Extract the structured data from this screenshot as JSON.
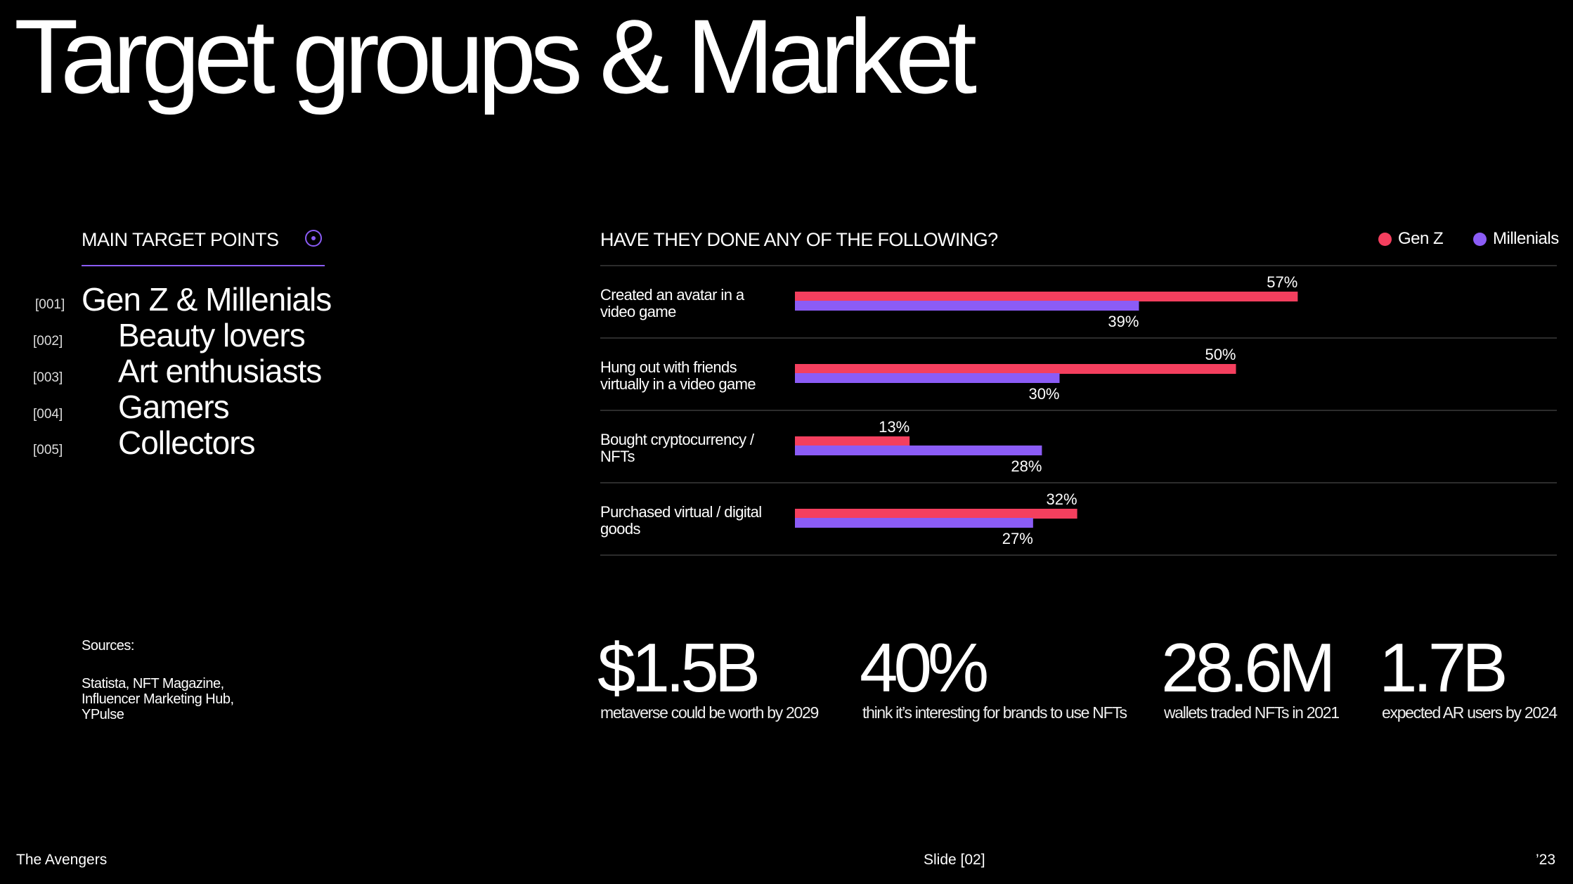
{
  "slide": {
    "title": "Target groups & Market",
    "footer_left": "The Avengers",
    "footer_center": "Slide [02]",
    "footer_right": "’23"
  },
  "target": {
    "heading": "MAIN TARGET POINTS",
    "icon": "target-dot-icon",
    "items": [
      {
        "num": "[001]",
        "label": "Gen Z & Millenials"
      },
      {
        "num": "[002]",
        "label": "Beauty lovers"
      },
      {
        "num": "[003]",
        "label": "Art enthusiasts"
      },
      {
        "num": "[004]",
        "label": "Gamers"
      },
      {
        "num": "[005]",
        "label": "Collectors"
      }
    ]
  },
  "sources": {
    "label": "Sources:",
    "lines": [
      "Statista, NFT Magazine,",
      "Influencer Marketing Hub,",
      "YPulse"
    ]
  },
  "colors": {
    "background": "#000000",
    "gen_z": "#f43f5e",
    "millenials": "#8b5cf6",
    "rule": "#3a3a3a"
  },
  "chart_data": {
    "type": "bar",
    "orientation": "horizontal",
    "title": "HAVE THEY DONE ANY OF THE FOLLOWING?",
    "legend_position": "top-right",
    "categories": [
      [
        "Created an avatar in a",
        "video game"
      ],
      [
        "Hung out with friends",
        "virtually in a video game"
      ],
      [
        "Bought cryptocurrency /",
        "NFTs"
      ],
      [
        "Purchased virtual / digital",
        "goods"
      ]
    ],
    "series": [
      {
        "name": "Gen Z",
        "color": "#f43f5e",
        "values": [
          57,
          50,
          13,
          32
        ],
        "labels": [
          "57%",
          "50%",
          "13%",
          "32%"
        ]
      },
      {
        "name": "Millenials",
        "color": "#8b5cf6",
        "values": [
          39,
          30,
          28,
          27
        ],
        "labels": [
          "39%",
          "30%",
          "28%",
          "27%"
        ]
      }
    ],
    "unit": "%"
  },
  "stats": [
    {
      "value": "$1.5B",
      "caption": "metaverse could be worth by 2029"
    },
    {
      "value": "40%",
      "caption": "think it’s interesting for brands to use NFTs"
    },
    {
      "value": "28.6M",
      "caption": "wallets traded NFTs in 2021"
    },
    {
      "value": "1.7B",
      "caption": "expected AR users by 2024"
    }
  ]
}
